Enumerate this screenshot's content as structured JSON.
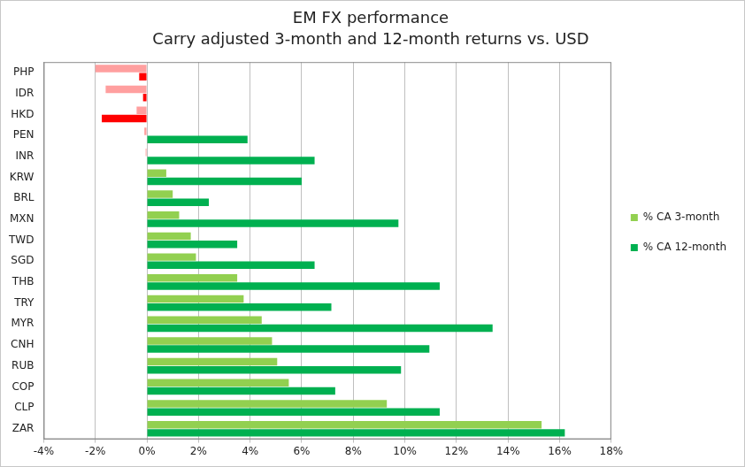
{
  "chart_data": {
    "type": "bar",
    "orientation": "horizontal",
    "title": "EM FX performance",
    "subtitle": "Carry adjusted 3-month and 12-month returns vs. USD",
    "categories": [
      "PHP",
      "IDR",
      "HKD",
      "PEN",
      "INR",
      "KRW",
      "BRL",
      "MXN",
      "TWD",
      "SGD",
      "THB",
      "TRY",
      "MYR",
      "CNH",
      "RUB",
      "COP",
      "CLP",
      "ZAR"
    ],
    "series": [
      {
        "name": "% CA 3-month",
        "color": "#92d050",
        "values": [
          -2.0,
          -1.6,
          -0.4,
          -0.1,
          -0.05,
          0.75,
          1.0,
          1.25,
          1.7,
          1.9,
          3.5,
          3.75,
          4.45,
          4.85,
          5.05,
          5.5,
          9.3,
          15.3
        ],
        "colors": [
          "#ff9f9f",
          "#ff9f9f",
          "#ff9f9f",
          "#ff9f9f",
          "#ff9f9f",
          "#92d050",
          "#92d050",
          "#92d050",
          "#92d050",
          "#92d050",
          "#92d050",
          "#92d050",
          "#92d050",
          "#92d050",
          "#92d050",
          "#92d050",
          "#92d050",
          "#92d050"
        ]
      },
      {
        "name": "% CA 12-month",
        "color": "#00b050",
        "values": [
          -0.3,
          -0.15,
          -1.75,
          3.9,
          6.5,
          6.0,
          2.4,
          9.75,
          3.5,
          6.5,
          11.35,
          7.15,
          13.4,
          10.95,
          9.85,
          7.3,
          11.35,
          16.2
        ],
        "colors": [
          "#ff0000",
          "#ff0000",
          "#ff0000",
          "#00b050",
          "#00b050",
          "#00b050",
          "#00b050",
          "#00b050",
          "#00b050",
          "#00b050",
          "#00b050",
          "#00b050",
          "#00b050",
          "#00b050",
          "#00b050",
          "#00b050",
          "#00b050",
          "#00b050"
        ]
      }
    ],
    "xlim": [
      -4,
      18
    ],
    "xticks": [
      {
        "value": -4,
        "label": "-4%"
      },
      {
        "value": -2,
        "label": "-2%"
      },
      {
        "value": 0,
        "label": "0%"
      },
      {
        "value": 2,
        "label": "2%"
      },
      {
        "value": 4,
        "label": "4%"
      },
      {
        "value": 6,
        "label": "6%"
      },
      {
        "value": 8,
        "label": "8%"
      },
      {
        "value": 10,
        "label": "10%"
      },
      {
        "value": 12,
        "label": "12%"
      },
      {
        "value": 14,
        "label": "14%"
      },
      {
        "value": 16,
        "label": "16%"
      },
      {
        "value": 18,
        "label": "18%"
      }
    ],
    "grid": true,
    "legend": "right"
  }
}
